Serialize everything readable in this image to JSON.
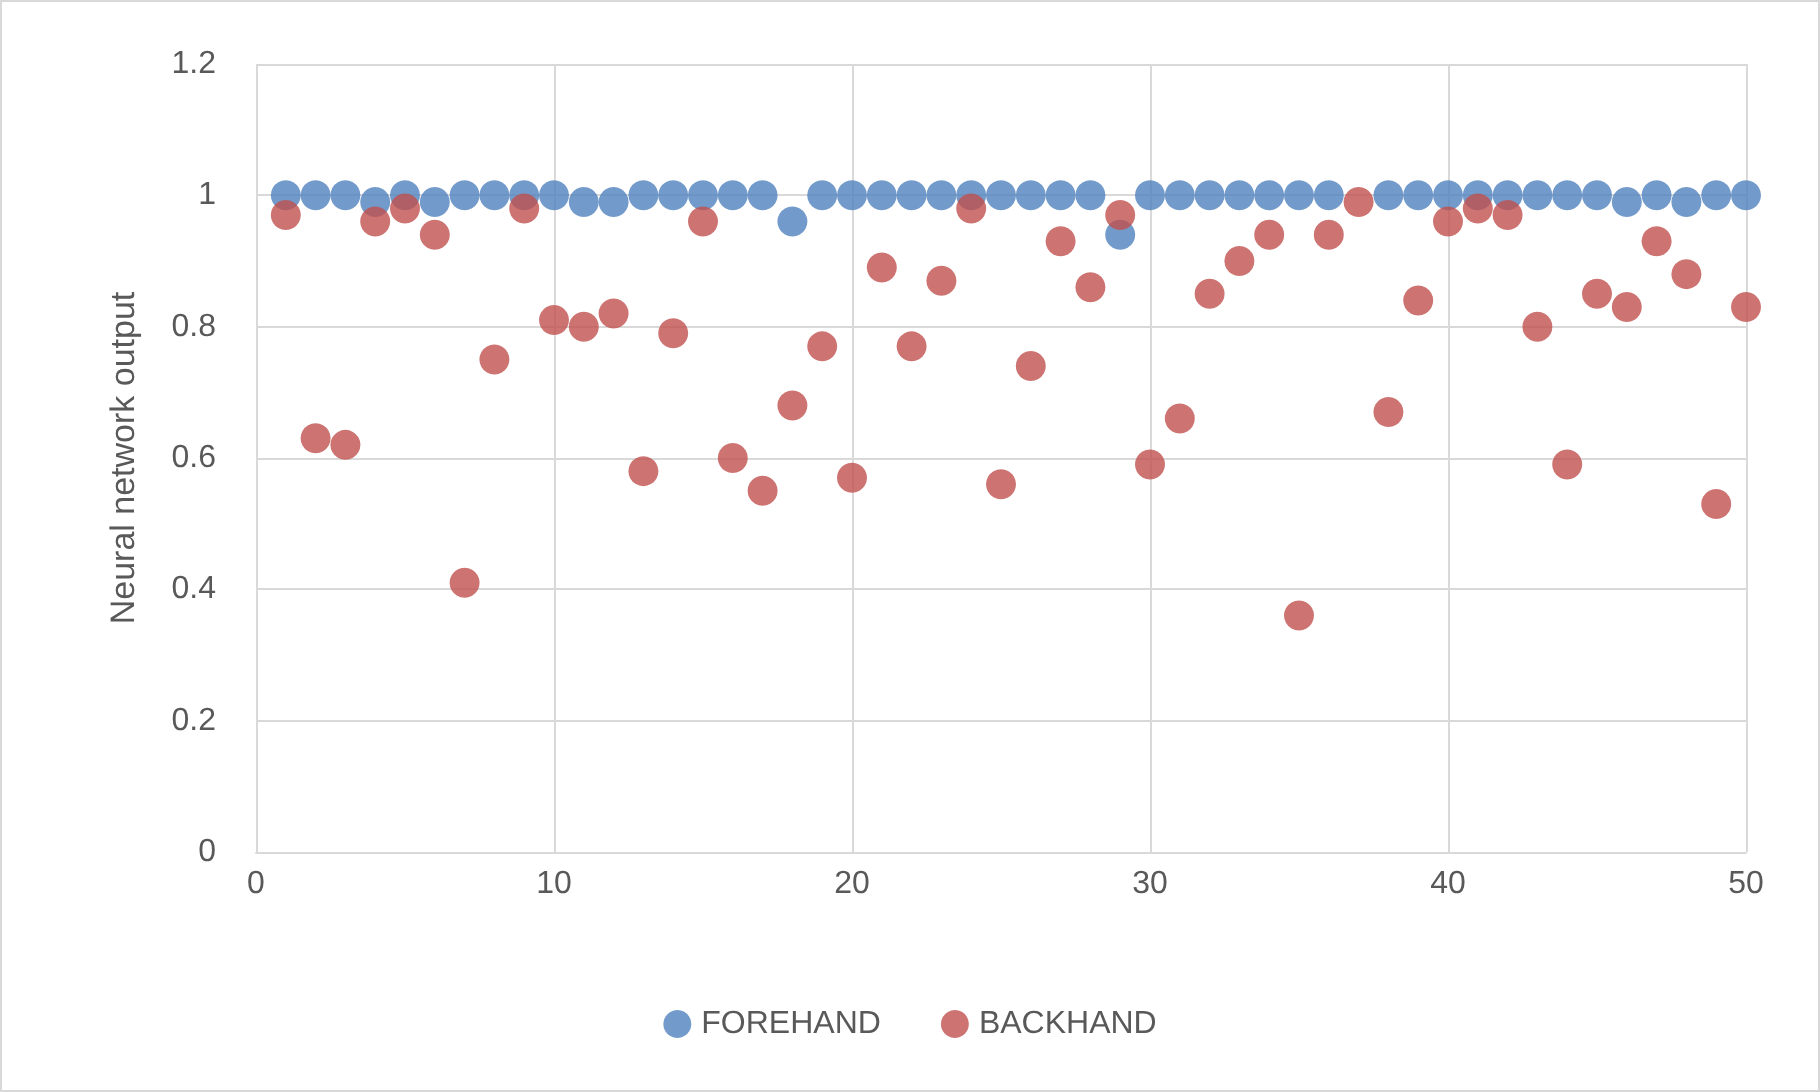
{
  "chart_data": {
    "type": "scatter",
    "ylabel": "Neural network output",
    "x": [
      1,
      2,
      3,
      4,
      5,
      6,
      7,
      8,
      9,
      10,
      11,
      12,
      13,
      14,
      15,
      16,
      17,
      18,
      19,
      20,
      21,
      22,
      23,
      24,
      25,
      26,
      27,
      28,
      29,
      30,
      31,
      32,
      33,
      34,
      35,
      36,
      37,
      38,
      39,
      40,
      41,
      42,
      43,
      44,
      45,
      46,
      47,
      48,
      49,
      50
    ],
    "series": [
      {
        "name": "FOREHAND",
        "color": "#4f81bd",
        "values": [
          1,
          1,
          1,
          0.99,
          1,
          0.99,
          1,
          1,
          1,
          1,
          0.99,
          0.99,
          1,
          1,
          1,
          1,
          1,
          0.96,
          1,
          1,
          1,
          1,
          1,
          1,
          1,
          1,
          1,
          1,
          0.94,
          1,
          1,
          1,
          1,
          1,
          1,
          1,
          null,
          1,
          1,
          1,
          1,
          1,
          1,
          1,
          1,
          0.99,
          1,
          0.99,
          1,
          1
        ]
      },
      {
        "name": "BACKHAND",
        "color": "#c0504d",
        "values": [
          0.97,
          0.63,
          0.62,
          0.96,
          0.98,
          0.94,
          0.41,
          0.75,
          0.98,
          0.81,
          0.8,
          0.82,
          0.58,
          0.79,
          0.96,
          0.6,
          0.55,
          0.68,
          0.77,
          0.57,
          0.89,
          0.77,
          0.87,
          0.98,
          0.56,
          0.74,
          0.93,
          0.86,
          0.97,
          0.59,
          0.66,
          0.85,
          0.9,
          0.94,
          0.36,
          0.94,
          0.99,
          0.67,
          0.84,
          0.96,
          0.98,
          0.97,
          0.8,
          0.59,
          0.85,
          0.83,
          0.93,
          0.88,
          0.53,
          0.83
        ]
      }
    ],
    "xlim": [
      0,
      50
    ],
    "xticks": [
      0,
      10,
      20,
      30,
      40,
      50
    ],
    "ylim": [
      0,
      1.2
    ],
    "yticks": [
      0,
      0.2,
      0.4,
      0.6,
      0.8,
      1,
      1.2
    ],
    "grid": true,
    "legend": "bottom",
    "marker": "circle"
  }
}
